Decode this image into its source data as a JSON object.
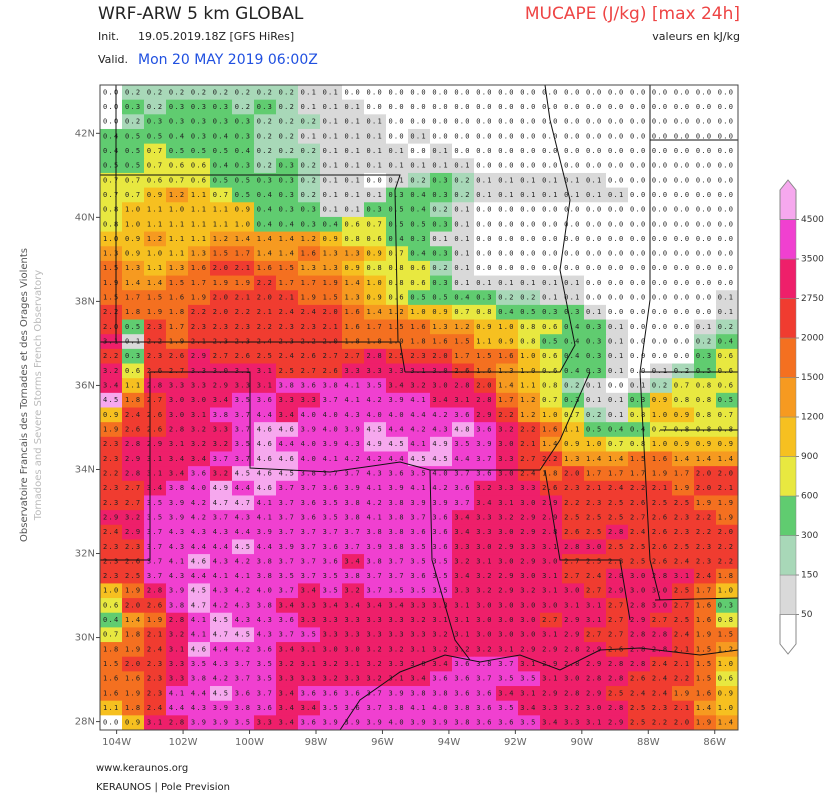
{
  "header": {
    "title": "WRF-ARW 5 km GLOBAL",
    "init_label": "Init.",
    "init": "19.05.2019.18Z [GFS HiRes]",
    "valid_label": "Valid.",
    "valid": "Mon 20 MAY 2019 06:00Z",
    "product": "MUCAPE (J/kg) [max 24h]",
    "units_note": "valeurs en kJ/kg"
  },
  "side": {
    "line1": "Observatoire Francais des Tornades et des Orages Violents",
    "line2": "Tornadoes and Severe Storms French Observatory"
  },
  "footer": {
    "site": "www.keraunos.org",
    "org": "KERAUNOS | Pole Prevision"
  },
  "map": {
    "xlim": [
      104.5,
      85.3
    ],
    "ylim": [
      27.8,
      43.15
    ],
    "xticks": [
      {
        "value": 104,
        "label": "104W"
      },
      {
        "value": 102,
        "label": "102W"
      },
      {
        "value": 100,
        "label": "100W"
      },
      {
        "value": 98,
        "label": "98W"
      },
      {
        "value": 96,
        "label": "96W"
      },
      {
        "value": 94,
        "label": "94W"
      },
      {
        "value": 92,
        "label": "92W"
      },
      {
        "value": 90,
        "label": "90W"
      },
      {
        "value": 88,
        "label": "88W"
      },
      {
        "value": 86,
        "label": "86W"
      }
    ],
    "yticks": [
      {
        "value": 42,
        "label": "42N"
      },
      {
        "value": 40,
        "label": "40N"
      },
      {
        "value": 38,
        "label": "38N"
      },
      {
        "value": 36,
        "label": "36N"
      },
      {
        "value": 34,
        "label": "34N"
      },
      {
        "value": 32,
        "label": "32N"
      },
      {
        "value": 30,
        "label": "30N"
      },
      {
        "value": 28,
        "label": "28N"
      }
    ]
  },
  "colorbar": {
    "levels": [
      50,
      150,
      300,
      600,
      900,
      1200,
      1500,
      2000,
      2750,
      3500,
      4500
    ],
    "colors": [
      "#ffffff",
      "#d9d9d9",
      "#a8d8b8",
      "#60cc70",
      "#e8e840",
      "#f6c020",
      "#f69a20",
      "#f47020",
      "#f03c30",
      "#ee1f6a",
      "#f040d0",
      "#f6a8ee"
    ]
  },
  "grid": {
    "rows": [
      "0.0 0.2 0.2 0.2 0.2 0.2 0.2 0.2 0.2 0.1 0.1 0.0 0.0 0.0 0.0 0.0 0.0 0.0 0.0 0.0 0.0 0.0 0.0 0.0 0.0 0.0 0.0 0.0 0.0",
      "0.0 0.3 0.2 0.3 0.3 0.3 0.2 0.3 0.2 0.1 0.1 0.1 0.0 0.0 0.0 0.0 0.0 0.0 0.0 0.0 0.0 0.0 0.0 0.0 0.0 0.0 0.0 0.0 0.0",
      "0.0 0.2 0.3 0.3 0.3 0.3 0.3 0.2 0.2 0.2 0.1 0.1 0.1 0.0 0.0 0.0 0.0 0.0 0.0 0.0 0.0 0.0 0.0 0.0 0.0 0.0 0.0 0.0 0.0",
      "0.4 0.5 0.5 0.4 0.3 0.4 0.3 0.2 0.2 0.1 0.1 0.1 0.1 0.0 0.1 0.0 0.0 0.0 0.0 0.0 0.0 0.0 0.0 0.0 0.0 0.0 0.0 0.0 0.0",
      "0.4 0.5 0.7 0.5 0.5 0.5 0.4 0.2 0.2 0.2 0.1 0.1 0.1 0.1 0.0 0.1 0.0 0.0 0.0 0.0 0.0 0.0 0.0 0.0 0.0 0.0 0.0 0.0 0.0",
      "0.5 0.5 0.7 0.6 0.6 0.4 0.3 0.2 0.3 0.2 0.1 0.1 0.1 0.1 0.1 0.1 0.1 0.0 0.0 0.0 0.0 0.0 0.0 0.0 0.0 0.0 0.0 0.0 0.0",
      "0.7 0.7 0.6 0.7 0.6 0.5 0.5 0.3 0.3 0.2 0.1 0.1 0.0 0.1 0.2 0.3 0.2 0.1 0.1 0.1 0.1 0.1 0.1 0.0 0.0 0.0 0.0 0.0 0.0",
      "0.7 0.7 0.9 1.2 1.1 0.7 0.5 0.4 0.3 0.2 0.1 0.1 0.1 0.3 0.4 0.3 0.2 0.1 0.1 0.1 0.1 0.1 0.1 0.1 0.0 0.0 0.0 0.0 0.0",
      "0.8 1.0 1.1 1.0 1.1 1.1 0.9 0.4 0.3 0.3 0.1 0.1 0.3 0.5 0.4 0.2 0.1 0.0 0.0 0.0 0.0 0.0 0.0 0.0 0.0 0.0 0.0 0.0 0.0",
      "0.8 1.0 1.1 1.1 1.1 1.1 1.0 0.4 0.4 0.3 0.4 0.6 0.7 0.5 0.5 0.3 0.1 0.0 0.0 0.0 0.0 0.0 0.0 0.0 0.0 0.0 0.0 0.0 0.0",
      "1.0 0.9 1.2 1.1 1.1 1.2 1.4 1.4 1.4 1.2 0.9 0.8 0.6 0.4 0.3 0.1 0.1 0.0 0.0 0.0 0.0 0.0 0.0 0.0 0.0 0.0 0.0 0.0 0.0",
      "1.3 0.9 1.0 1.1 1.3 1.5 1.7 1.4 1.4 1.6 1.3 1.3 0.9 0.7 0.4 0.3 0.1 0.0 0.0 0.0 0.0 0.0 0.0 0.0 0.0 0.0 0.0 0.0 0.0",
      "1.5 1.3 1.1 1.3 1.6 2.0 2.1 1.6 1.5 1.3 1.3 0.9 0.8 0.8 0.6 0.2 0.1 0.0 0.0 0.0 0.0 0.0 0.0 0.0 0.0 0.0 0.0 0.0 0.0",
      "1.9 1.4 1.4 1.5 1.7 1.9 1.9 2.2 1.7 1.7 1.9 1.4 1.0 0.8 0.6 0.3 0.1 0.1 0.1 0.1 0.1 0.1 0.0 0.0 0.0 0.0 0.0 0.0 0.0",
      "1.5 1.7 1.5 1.6 1.9 2.0 2.1 2.0 2.1 1.9 1.5 1.3 0.9 0.6 0.5 0.5 0.4 0.3 0.2 0.2 0.1 0.1 0.0 0.0 0.0 0.0 0.0 0.0 0.1",
      "2.2 1.8 1.9 1.8 2.2 2.0 2.2 2.1 2.4 2.4 2.0 1.6 1.4 1.2 1.0 0.9 0.7 0.8 0.4 0.5 0.3 0.3 0.1 0.0 0.0 0.0 0.0 0.0 0.1",
      "2.0 0.5 2.3 1.7 2.3 2.3 2.3 2.2 2.3 2.3 2.1 1.6 1.7 1.5 1.6 1.3 1.2 0.9 1.0 0.8 0.6 0.4 0.3 0.1 0.0 0.0 0.0 0.1 0.2",
      "3.1 0.1 2.2 1.9 2.1 2.3 2.3 2.4 2.3 2.2 2.0 1.8 1.8 1.9 1.8 1.6 1.5 1.1 0.9 0.8 0.5 0.4 0.3 0.1 0.0 0.0 0.0 0.2 0.4",
      "2.2 0.3 2.3 2.6 2.9 2.7 2.6 2.5 2.4 2.6 2.7 2.7 2.8 2.5 2.3 2.0 1.7 1.5 1.6 1.0 0.6 0.4 0.3 0.1 0.0 0.0 0.0 0.3 0.6",
      "3.2 0.6 2.6 2.7 3.3 3.0 3.1 3.1 2.5 2.7 2.6 3.3 3.3 3.3 3.1 3.0 2.6 1.6 1.3 1.0 0.6 0.4 0.3 0.1 0.0 0.1 0.2 0.5 0.6",
      "3.4 1.1 2.8 3.3 3.3 2.9 3.3 3.1 3.8 3.6 3.8 4.1 3.5 3.4 3.2 3.0 2.8 2.0 1.4 1.1 0.8 0.2 0.1 0.0 0.1 0.2 0.7 0.8 0.6",
      "4.5 1.8 2.7 3.0 3.0 3.4 3.5 3.6 3.3 3.3 3.7 4.1 4.2 3.9 4.1 3.4 3.1 2.8 1.7 1.2 0.7 0.3 0.1 0.1 0.3 0.9 0.8 0.8 0.5",
      "0.9 2.4 2.6 3.0 3.1 3.8 3.7 4.4 3.4 4.0 4.0 4.3 4.0 4.0 4.4 4.2 3.6 2.9 2.2 1.2 1.0 0.7 0.2 0.1 0.8 1.0 0.9 0.8 0.7",
      "1.9 2.6 2.6 2.8 3.2 3.3 3.7 4.6 4.6 3.9 4.0 3.9 4.5 4.4 4.2 4.3 4.8 3.6 3.2 2.2 1.6 1.1 0.5 0.4 0.4 0.7 0.8 0.8 0.8",
      "2.3 2.8 2.9 3.1 3.2 3.2 3.5 4.6 4.4 4.0 3.9 4.3 4.9 4.5 4.1 4.9 3.5 3.9 3.0 2.1 1.4 0.9 1.0 0.7 0.8 1.0 0.9 0.9 0.9",
      "2.3 2.9 3.1 3.4 3.4 3.7 3.7 4.6 4.6 4.0 4.1 4.2 4.2 4.4 4.5 4.5 4.4 3.7 3.3 2.7 2.2 1.3 1.4 1.4 1.5 1.6 1.4 1.4 1.4",
      "2.2 2.8 3.1 3.4 3.6 3.2 4.5 4.6 4.5 3.8 3.7 3.7 4.3 3.6 3.5 4.0 3.7 3.6 3.0 2.4 1.8 2.0 1.7 1.7 1.7 1.9 1.7 2.0 2.0",
      "2.3 2.7 3.4 3.8 4.0 4.9 4.4 4.6 3.7 3.7 3.6 3.9 4.1 3.9 4.1 4.2 3.6 3.2 3.3 3.3 2.6 2.3 2.1 2.4 2.2 2.1 1.9 2.0 2.1",
      "2.3 2.7 3.5 3.9 4.2 4.7 4.7 4.1 3.7 3.6 3.5 3.8 4.2 3.8 3.9 3.9 3.7 3.4 3.1 3.0 2.9 2.2 2.3 2.5 2.6 2.5 2.5 1.9 1.9",
      "2.9 3.2 3.5 3.9 4.2 3.7 4.3 4.1 3.7 3.6 3.5 3.8 4.1 3.8 3.7 3.6 3.4 3.3 3.2 2.9 2.9 2.5 2.5 2.5 2.7 2.6 2.3 2.2 1.9",
      "2.4 2.9 3.7 4.3 4.3 4.3 4.4 3.9 3.7 3.7 3.7 3.7 3.8 3.8 3.6 3.6 3.4 3.3 3.0 2.9 2.8 2.6 2.5 2.8 2.4 2.6 2.3 2.2 2.0",
      "2.3 2.3 3.7 4.3 4.4 4.4 4.5 4.4 3.9 3.7 3.6 3.7 3.9 3.8 3.5 3.6 3.3 3.0 2.9 3.3 3.1 2.8 3.0 2.5 2.5 2.6 2.5 2.3 2.2",
      "2.3 2.6 3.7 4.1 4.6 4.3 4.2 3.8 3.7 3.7 3.6 3.4 3.8 3.7 3.5 3.5 3.2 3.1 3.0 2.9 3.0 2.7 2.5 2.3 2.5 2.6 2.4 2.3 2.2",
      "2.3 2.5 3.7 4.3 4.4 4.1 4.1 3.8 3.5 3.7 3.5 3.8 3.7 3.7 3.6 3.5 3.4 3.2 2.9 3.0 3.1 2.7 2.4 2.8 3.0 2.8 3.1 2.4 1.8",
      "1.0 1.9 2.8 3.9 4.5 4.3 4.2 4.0 3.7 3.4 3.5 3.2 3.7 3.5 3.5 3.5 3.3 3.2 2.9 3.2 3.1 3.0 2.7 2.9 3.0 3.0 2.5 1.7 1.0",
      "0.6 2.0 2.6 3.8 4.7 4.2 4.3 3.8 3.4 3.3 3.4 3.4 3.4 3.4 3.3 3.3 3.1 3.0 3.0 3.0 3.0 3.1 3.1 2.7 2.8 3.0 2.7 1.6 0.3",
      "0.4 1.4 1.9 2.8 4.1 4.5 4.3 4.3 3.6 3.3 3.3 3.3 3.3 3.3 3.2 3.1 3.1 3.0 3.0 3.0 2.7 2.9 3.1 2.7 2.9 2.7 2.5 1.6 0.8",
      "0.7 1.8 2.1 3.2 4.1 4.7 4.5 4.3 3.7 3.5 3.3 3.3 3.3 3.3 3.3 3.2 3.1 3.0 3.0 3.0 3.1 2.9 2.7 2.7 2.8 2.8 2.4 1.9 1.5",
      "1.8 1.9 2.4 3.1 4.6 4.4 4.2 3.6 3.4 3.1 3.0 3.0 3.2 3.2 3.1 3.2 3.2 3.2 3.1 2.9 2.9 2.8 2.9 2.6 2.8 2.8 2.1 1.5 1.2",
      "1.5 2.0 2.3 3.3 3.5 4.3 3.7 3.5 3.2 3.1 3.2 3.1 3.2 3.3 3.0 3.4 3.6 3.8 3.7 3.1 2.9 2.8 2.9 2.8 2.8 2.4 2.1 1.5 1.0",
      "1.6 1.6 2.3 3.3 3.8 4.2 3.7 3.5 3.3 3.3 3.2 3.3 3.2 3.1 3.4 3.6 3.6 3.7 3.5 3.5 3.1 3.0 2.8 2.8 2.6 2.4 2.2 1.5 0.6",
      "1.6 1.9 2.3 4.1 4.4 4.5 3.6 3.7 3.4 3.6 3.6 3.6 3.7 3.9 3.8 3.8 3.6 3.6 3.4 3.1 2.9 2.8 2.9 2.5 2.4 2.4 1.9 1.6 0.9",
      "1.1 1.8 2.4 4.4 4.3 3.9 3.8 3.6 3.4 3.4 3.5 3.6 3.7 3.8 4.1 4.0 3.8 3.6 3.5 3.4 3.3 3.2 3.0 2.8 2.5 2.3 2.1 1.4 1.0",
      "0.0 0.9 3.1 2.8 3.9 3.9 3.5 3.3 3.4 3.6 3.9 3.9 3.9 4.0 3.9 3.9 3.8 3.6 3.6 3.5 3.4 3.3 3.1 2.9 2.5 2.2 2.0 1.9 1.4"
    ]
  }
}
